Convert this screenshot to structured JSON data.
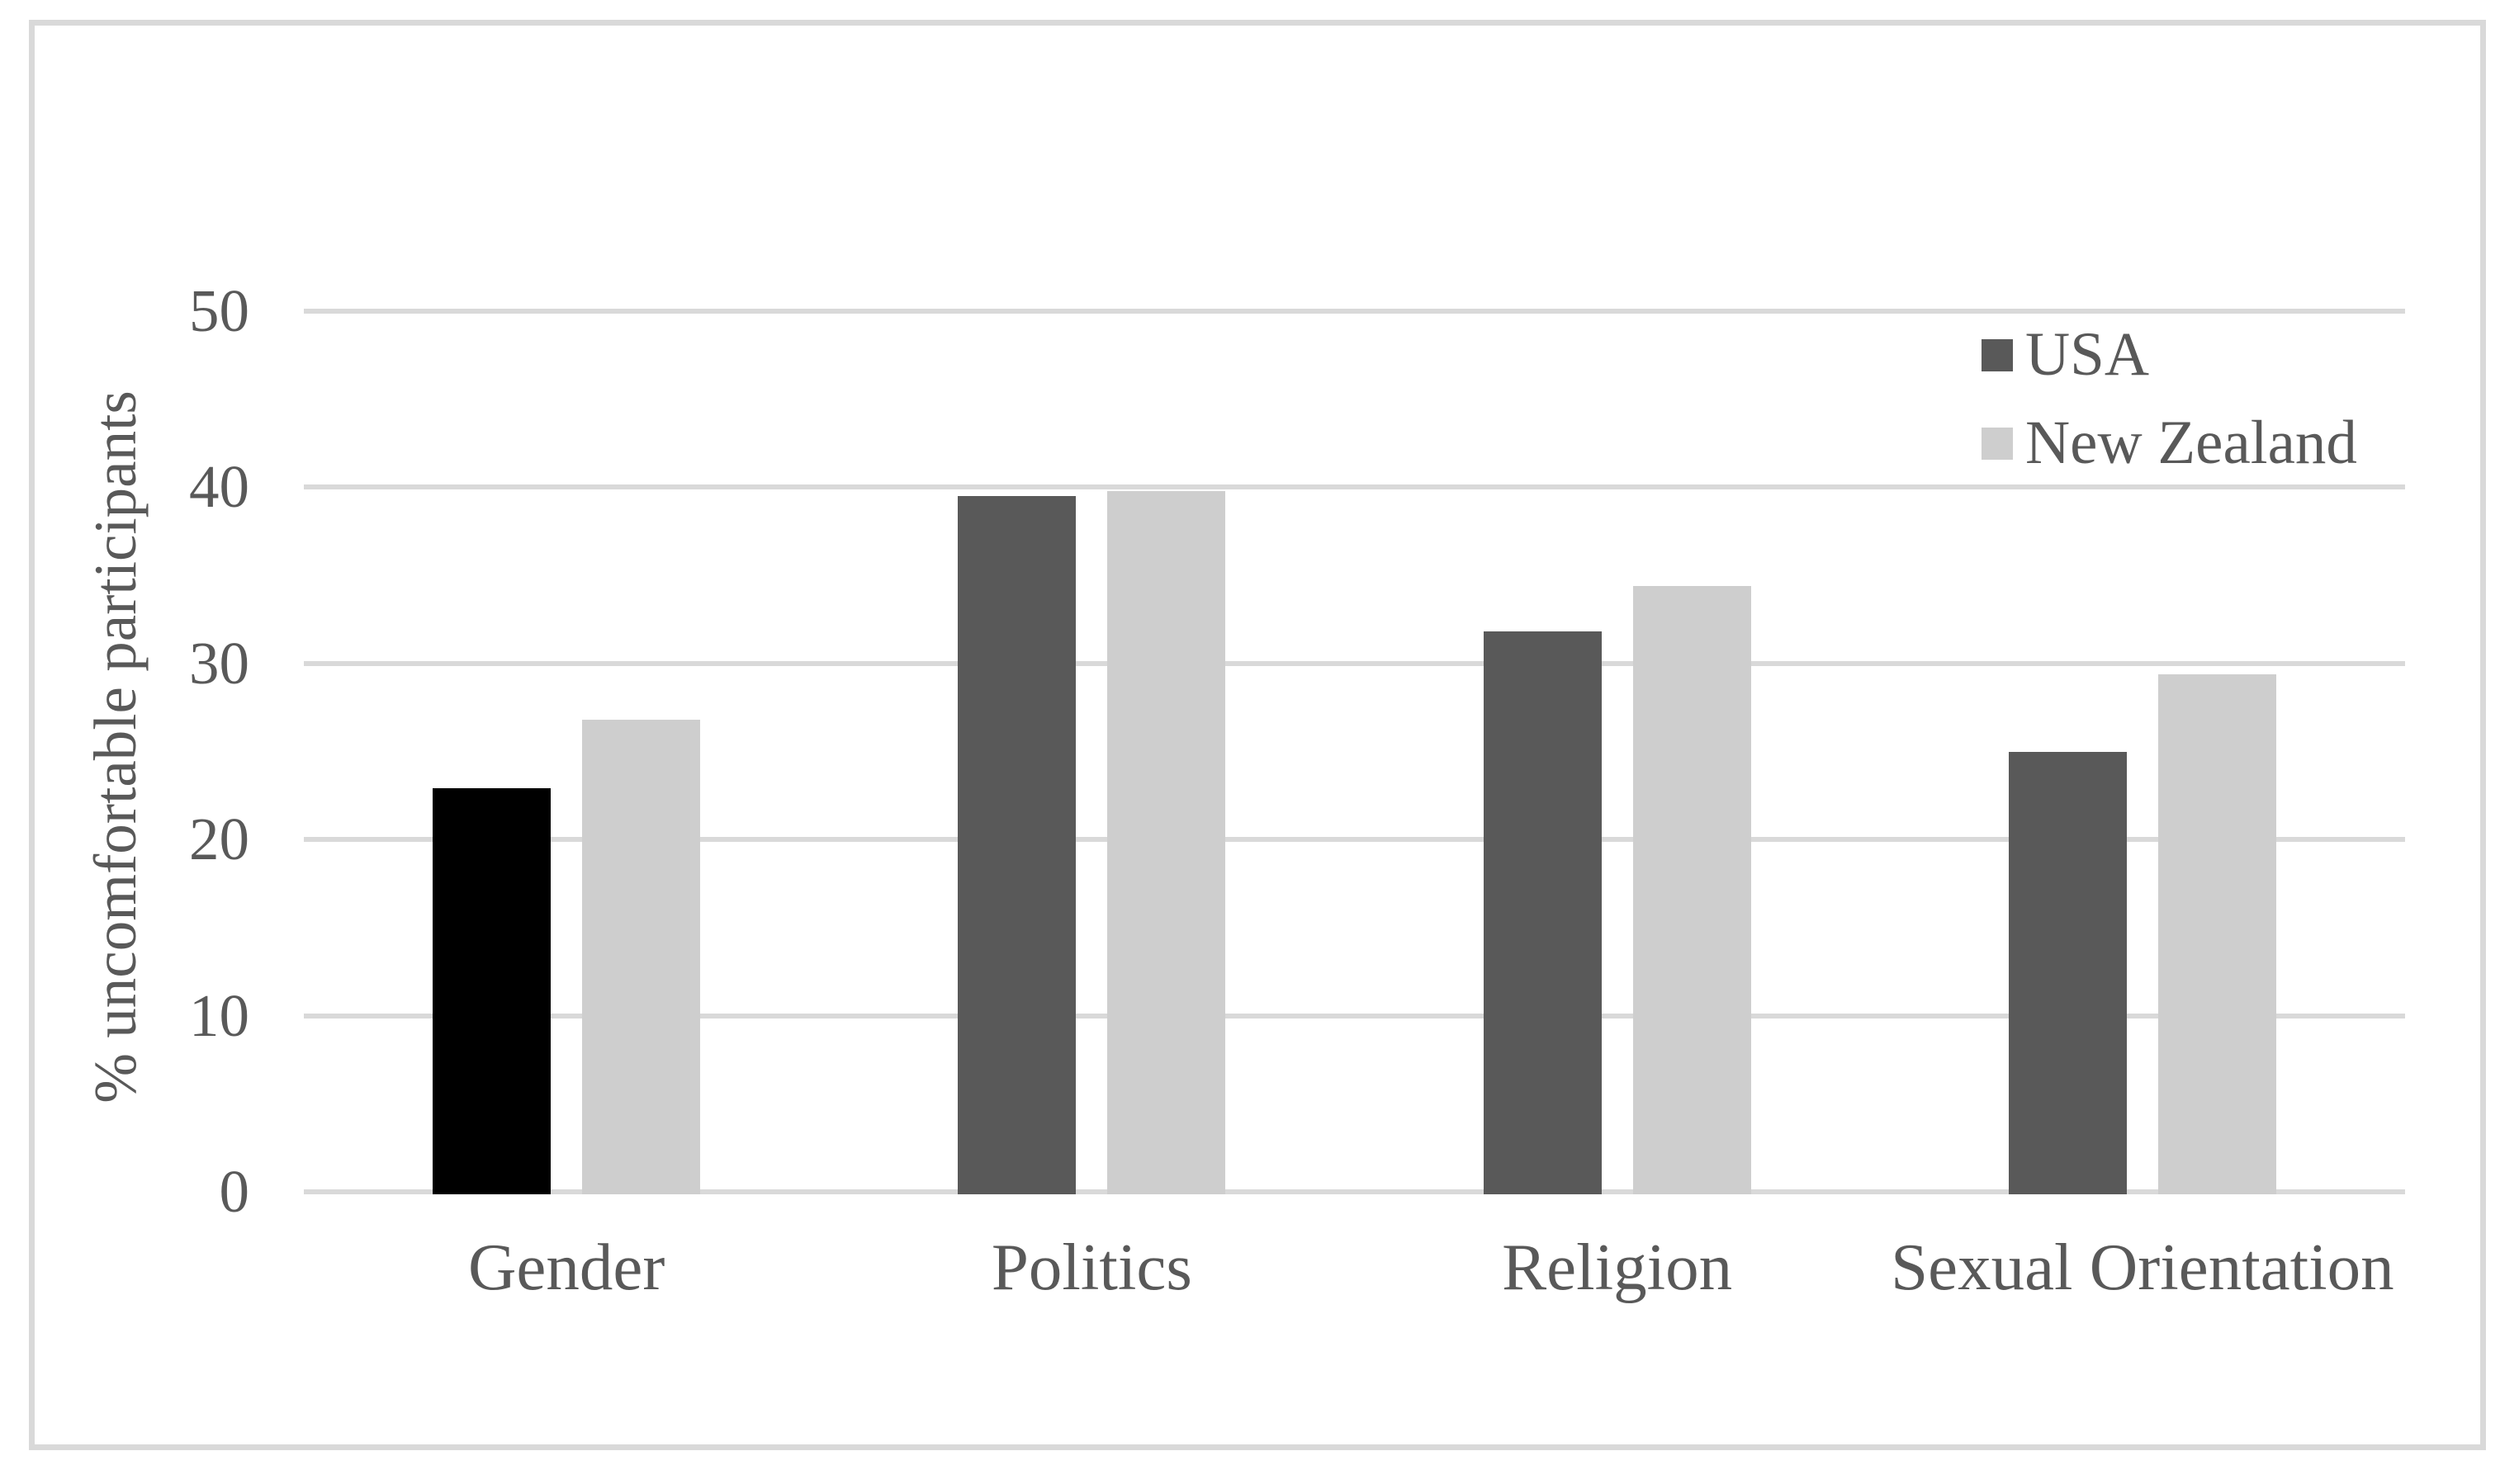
{
  "figure": {
    "background": "#ffffff",
    "border_color": "#d9d9d9"
  },
  "chart_data": {
    "type": "bar",
    "title": "",
    "categories": [
      "Gender",
      "Politics",
      "Religion",
      "Sexual Orientation"
    ],
    "series": [
      {
        "name": "USA",
        "color": "#595959",
        "bar_colors": [
          "#000000",
          "#595959",
          "#595959",
          "#595959"
        ],
        "values": [
          22.9,
          39.5,
          31.8,
          25.0
        ]
      },
      {
        "name": "New Zealand",
        "color": "#cecece",
        "values": [
          26.8,
          39.8,
          34.4,
          29.4
        ]
      }
    ],
    "xlabel": "",
    "ylabel": "% uncomfortable participants",
    "ylim": [
      0,
      50
    ],
    "yticks": [
      0,
      10,
      20,
      30,
      40,
      50
    ],
    "grid": "horizontal",
    "gridline_color": "#d9d9d9",
    "axis_text_color": "#595959",
    "legend_position": "top-right-inside"
  }
}
